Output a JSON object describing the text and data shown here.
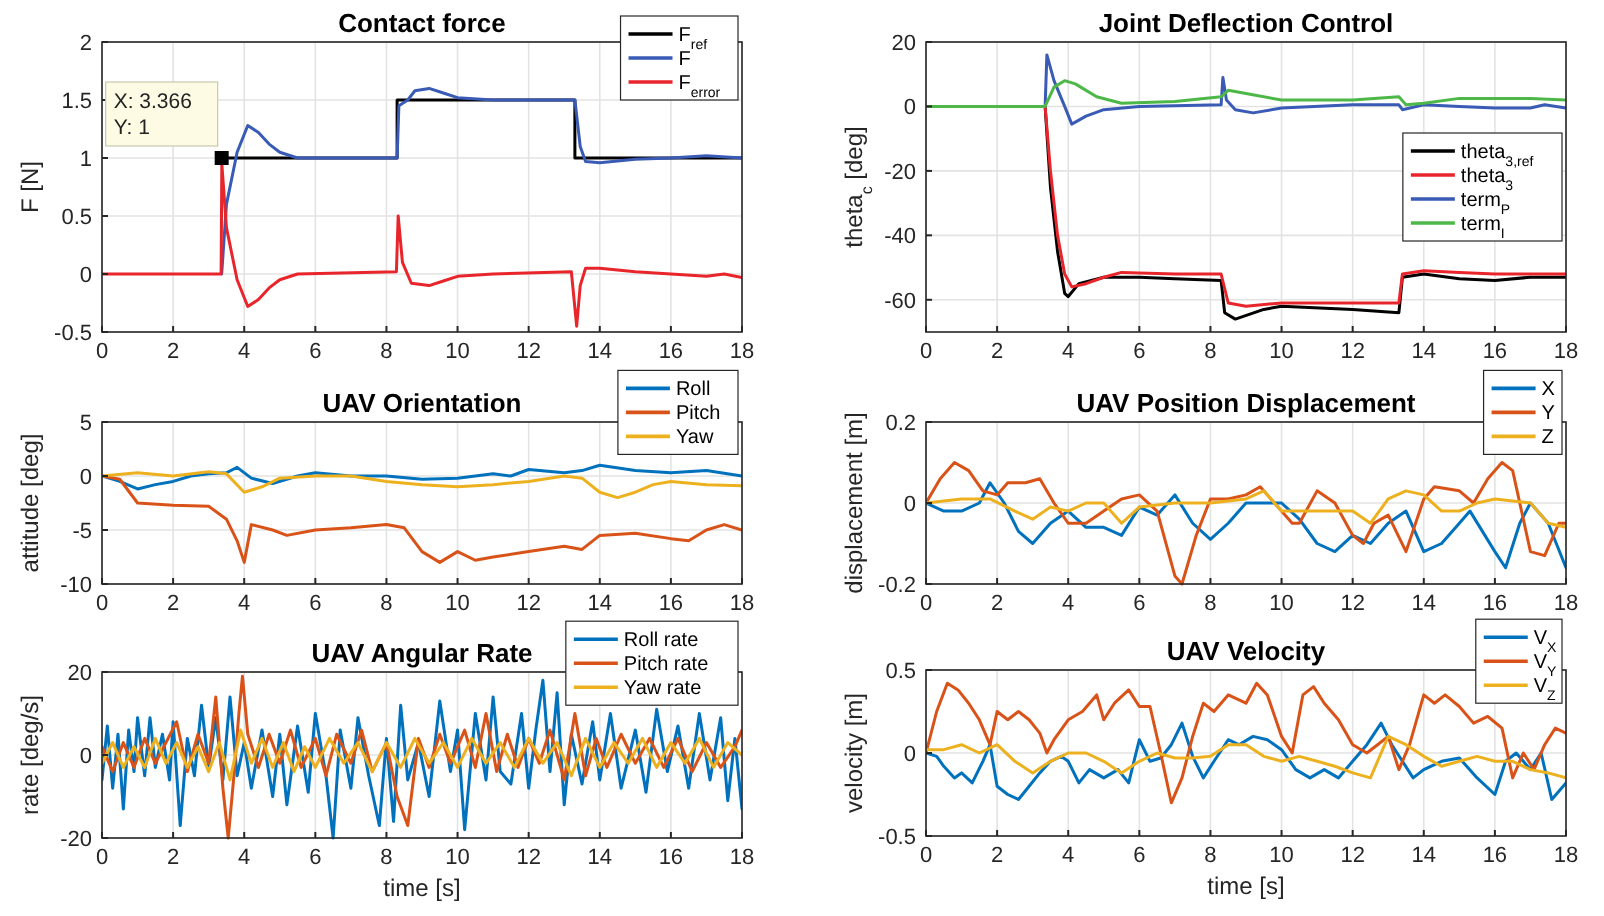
{
  "chart_data": [
    {
      "type": "line",
      "title": "Contact force",
      "ylabel": "F [N]",
      "xlim": [
        0,
        18
      ],
      "ylim": [
        -0.5,
        2
      ],
      "xticks": [
        0,
        2,
        4,
        6,
        8,
        10,
        12,
        14,
        16,
        18
      ],
      "yticks": [
        -0.5,
        0,
        0.5,
        1,
        1.5,
        2
      ],
      "grid": true,
      "legend": "top right",
      "annotations": [
        {
          "text": "X: 3.366\nY: 1",
          "x": 3.366,
          "y": 1
        }
      ],
      "series": [
        {
          "name": "F$_{ref}$",
          "color": "#000000",
          "x": [
            3.366,
            8.3,
            8.3,
            13.3,
            13.3,
            18
          ],
          "values": [
            1,
            1,
            1.5,
            1.5,
            1,
            1
          ]
        },
        {
          "name": "F",
          "color": "#3a5bb5",
          "x": [
            3.366,
            3.5,
            3.8,
            4.1,
            4.4,
            4.7,
            5,
            5.5,
            8.3,
            8.35,
            8.6,
            8.8,
            9.2,
            9.6,
            10,
            11,
            13.3,
            13.45,
            13.6,
            14,
            15,
            16,
            17,
            18
          ],
          "values": [
            0,
            0.6,
            1.05,
            1.28,
            1.22,
            1.12,
            1.05,
            1,
            1,
            1.45,
            1.5,
            1.58,
            1.6,
            1.56,
            1.52,
            1.5,
            1.5,
            1.1,
            0.97,
            0.96,
            0.99,
            1,
            1.02,
            1
          ]
        },
        {
          "name": "F$_{error}$",
          "color": "#e8252b",
          "x": [
            0,
            3.35,
            3.37,
            3.5,
            3.8,
            4.1,
            4.4,
            4.7,
            5,
            5.5,
            8.28,
            8.33,
            8.45,
            8.7,
            9.2,
            9.6,
            10,
            11,
            13.2,
            13.35,
            13.45,
            13.6,
            14,
            15,
            16,
            17,
            17.5,
            18
          ],
          "values": [
            0,
            0,
            0.95,
            0.4,
            -0.05,
            -0.28,
            -0.22,
            -0.12,
            -0.05,
            0,
            0.02,
            0.5,
            0.1,
            -0.08,
            -0.1,
            -0.06,
            -0.02,
            0,
            0.02,
            -0.45,
            -0.1,
            0.05,
            0.05,
            0.02,
            0,
            -0.02,
            0,
            -0.03
          ]
        }
      ]
    },
    {
      "type": "line",
      "title": "Joint Deflection Control",
      "ylabel": "theta$_{c}$ [deg]",
      "xlim": [
        0,
        18
      ],
      "ylim": [
        -70,
        20
      ],
      "xticks": [
        0,
        2,
        4,
        6,
        8,
        10,
        12,
        14,
        16,
        18
      ],
      "yticks": [
        -60,
        -40,
        -20,
        0,
        20
      ],
      "grid": true,
      "legend": "right",
      "series": [
        {
          "name": "theta$_{3,ref}$",
          "color": "#000000",
          "x": [
            3.35,
            3.5,
            3.7,
            3.9,
            4,
            4.3,
            5,
            6,
            7,
            8.3,
            8.4,
            8.7,
            9.5,
            10,
            12,
            13.3,
            13.4,
            14,
            15,
            16,
            17,
            18
          ],
          "values": [
            0,
            -25,
            -45,
            -58,
            -59,
            -55,
            -53,
            -53,
            -53.5,
            -54,
            -64,
            -66,
            -63,
            -62,
            -63,
            -64,
            -53,
            -52,
            -53.5,
            -54,
            -53,
            -53
          ]
        },
        {
          "name": "theta$_{3}$",
          "color": "#e8252b",
          "x": [
            3.35,
            3.5,
            3.7,
            3.9,
            4.1,
            4.5,
            5,
            5.5,
            7,
            8.3,
            8.5,
            9,
            10,
            12,
            13.3,
            13.4,
            14,
            15,
            16,
            18
          ],
          "values": [
            0,
            -20,
            -40,
            -52,
            -56,
            -55,
            -53,
            -51.5,
            -52,
            -52,
            -61,
            -62,
            -61,
            -61,
            -61,
            -52,
            -51,
            -51.5,
            -52,
            -52
          ]
        },
        {
          "name": "term$_{P}$",
          "color": "#3a5bb5",
          "x": [
            0,
            3.35,
            3.4,
            3.6,
            3.9,
            4.1,
            4.5,
            5,
            6,
            8.3,
            8.35,
            8.45,
            8.7,
            9.2,
            10,
            12,
            13.3,
            13.4,
            14,
            15,
            16,
            17,
            17.4,
            18
          ],
          "values": [
            0,
            0,
            16,
            8,
            0,
            -5.5,
            -3,
            -1,
            0,
            0.5,
            9,
            2,
            -1,
            -2,
            -0.5,
            0.5,
            0.5,
            -1,
            0.5,
            0,
            -0.5,
            -0.5,
            0.5,
            -0.5
          ]
        },
        {
          "name": "term$_{I}$",
          "color": "#4db848",
          "x": [
            0,
            3.35,
            3.6,
            3.9,
            4.2,
            4.8,
            5.5,
            7,
            8.3,
            8.5,
            9,
            10,
            12,
            13.3,
            13.5,
            14,
            15,
            16,
            17,
            18
          ],
          "values": [
            0,
            0,
            6,
            8,
            7,
            3,
            1,
            1.5,
            3,
            5,
            4,
            2,
            2,
            3,
            0.5,
            1,
            2.5,
            2.5,
            2.5,
            2
          ]
        }
      ]
    },
    {
      "type": "line",
      "title": "UAV Orientation",
      "ylabel": "attitude [deg]",
      "xlim": [
        0,
        18
      ],
      "ylim": [
        -10,
        5
      ],
      "xticks": [
        0,
        2,
        4,
        6,
        8,
        10,
        12,
        14,
        16,
        18
      ],
      "yticks": [
        -10,
        -5,
        0,
        5
      ],
      "grid": true,
      "legend": "top right",
      "series": [
        {
          "name": "Roll",
          "color": "#0072bd",
          "x": [
            0,
            0.5,
            1,
            1.5,
            2,
            2.5,
            3,
            3.5,
            3.8,
            4.2,
            4.8,
            5.5,
            6,
            7,
            8,
            9,
            10,
            11,
            11.5,
            12,
            13,
            13.5,
            14,
            15,
            16,
            17,
            18
          ],
          "values": [
            0,
            -0.5,
            -1.2,
            -0.8,
            -0.5,
            0,
            0.2,
            0.3,
            0.8,
            -0.2,
            -0.7,
            0,
            0.3,
            0,
            0,
            -0.3,
            -0.2,
            0.2,
            0,
            0.6,
            0.3,
            0.5,
            1,
            0.5,
            0.3,
            0.5,
            0
          ]
        },
        {
          "name": "Pitch",
          "color": "#d95319",
          "x": [
            0,
            0.5,
            1,
            2,
            3,
            3.5,
            3.8,
            4,
            4.2,
            4.8,
            5.2,
            6,
            7,
            8,
            8.5,
            9,
            9.5,
            10,
            10.5,
            11,
            12,
            13,
            13.5,
            14,
            15,
            16,
            16.5,
            17,
            17.5,
            18
          ],
          "values": [
            0,
            -0.3,
            -2.5,
            -2.7,
            -2.8,
            -4,
            -6,
            -8,
            -4.5,
            -5,
            -5.5,
            -5,
            -4.8,
            -4.5,
            -4.8,
            -7,
            -8,
            -7,
            -7.8,
            -7.5,
            -7,
            -6.5,
            -6.8,
            -5.5,
            -5.3,
            -5.8,
            -6,
            -5,
            -4.5,
            -5
          ]
        },
        {
          "name": "Yaw",
          "color": "#edb120",
          "x": [
            0,
            1,
            2,
            3,
            3.5,
            4,
            4.5,
            5,
            6,
            7,
            8,
            9,
            10,
            11,
            12,
            13,
            13.5,
            14,
            14.5,
            15,
            15.5,
            16,
            17,
            18
          ],
          "values": [
            0,
            0.3,
            0,
            0.4,
            0.2,
            -1.5,
            -1,
            -0.2,
            0,
            0,
            -0.5,
            -0.8,
            -1,
            -0.8,
            -0.5,
            0,
            -0.2,
            -1.5,
            -2,
            -1.5,
            -0.8,
            -0.5,
            -0.8,
            -0.9
          ]
        }
      ]
    },
    {
      "type": "line",
      "title": "UAV Position Displacement",
      "ylabel": "displacement [m]",
      "xlim": [
        0,
        18
      ],
      "ylim": [
        -0.2,
        0.2
      ],
      "xticks": [
        0,
        2,
        4,
        6,
        8,
        10,
        12,
        14,
        16,
        18
      ],
      "yticks": [
        -0.2,
        0,
        0.2
      ],
      "grid": true,
      "legend": "top right",
      "series": [
        {
          "name": "X",
          "color": "#0072bd",
          "x": [
            0,
            0.5,
            1,
            1.5,
            1.8,
            2.2,
            2.6,
            3,
            3.5,
            4,
            4.5,
            5,
            5.5,
            6,
            6.5,
            7,
            7.5,
            8,
            8.5,
            9,
            10,
            10.5,
            11,
            11.5,
            12,
            12.5,
            13,
            13.5,
            14,
            14.5,
            15,
            15.3,
            16,
            16.3,
            16.7,
            17,
            17.5,
            18
          ],
          "values": [
            0,
            -0.02,
            -0.02,
            0,
            0.05,
            0,
            -0.07,
            -0.1,
            -0.05,
            -0.02,
            -0.06,
            -0.06,
            -0.08,
            -0.01,
            -0.03,
            0.02,
            -0.05,
            -0.09,
            -0.05,
            0,
            0,
            -0.04,
            -0.1,
            -0.12,
            -0.08,
            -0.1,
            -0.05,
            -0.02,
            -0.12,
            -0.1,
            -0.05,
            -0.02,
            -0.12,
            -0.16,
            -0.05,
            0,
            -0.05,
            -0.16
          ]
        },
        {
          "name": "Y",
          "color": "#d95319",
          "x": [
            0,
            0.4,
            0.8,
            1.2,
            1.6,
            2,
            2.3,
            2.8,
            3.2,
            3.6,
            4,
            4.5,
            5,
            5.5,
            6,
            6.5,
            7,
            7.2,
            7.6,
            8,
            8.5,
            9,
            9.4,
            9.8,
            10.3,
            10.5,
            11,
            11.5,
            12,
            12.3,
            12.6,
            13,
            13.5,
            14,
            14.3,
            15,
            15.4,
            15.8,
            16.2,
            16.5,
            17,
            17.4,
            17.8,
            18
          ],
          "values": [
            0,
            0.06,
            0.1,
            0.08,
            0.03,
            0.02,
            0.05,
            0.05,
            0.06,
            0,
            -0.05,
            -0.05,
            -0.02,
            0.01,
            0.02,
            -0.02,
            -0.18,
            -0.2,
            -0.08,
            0.01,
            0.01,
            0.02,
            0.04,
            0,
            -0.05,
            -0.05,
            0.03,
            0,
            -0.08,
            -0.1,
            -0.05,
            -0.03,
            -0.12,
            0.01,
            0.04,
            0.03,
            0,
            0.06,
            0.1,
            0.08,
            -0.12,
            -0.13,
            -0.05,
            -0.05
          ]
        },
        {
          "name": "Z",
          "color": "#edb120",
          "x": [
            0,
            1,
            1.8,
            2.5,
            3,
            3.5,
            4,
            4.5,
            5,
            5.5,
            6,
            7,
            8,
            9,
            9.5,
            10,
            11,
            12,
            12.5,
            13,
            13.5,
            14,
            14.5,
            15,
            15.5,
            16,
            17,
            17.5,
            18
          ],
          "values": [
            0,
            0.01,
            0.01,
            -0.02,
            -0.04,
            -0.01,
            -0.02,
            0,
            0,
            -0.05,
            -0.01,
            0,
            0,
            0.01,
            0.03,
            -0.02,
            -0.02,
            -0.02,
            -0.05,
            0.01,
            0.03,
            0.02,
            -0.02,
            -0.02,
            0,
            0.01,
            0,
            -0.05,
            -0.06
          ]
        }
      ]
    },
    {
      "type": "line",
      "title": "UAV Angular Rate",
      "xlabel": "time [s]",
      "ylabel": "rate [deg/s]",
      "xlim": [
        0,
        18
      ],
      "ylim": [
        -20,
        20
      ],
      "xticks": [
        0,
        2,
        4,
        6,
        8,
        10,
        12,
        14,
        16,
        18
      ],
      "yticks": [
        -20,
        0,
        20
      ],
      "grid": true,
      "legend": "top right",
      "series": [
        {
          "name": "Roll rate",
          "color": "#0072bd",
          "x": [
            0,
            0.15,
            0.3,
            0.45,
            0.6,
            0.75,
            0.9,
            1,
            1.2,
            1.35,
            1.5,
            1.7,
            1.9,
            2,
            2.2,
            2.4,
            2.6,
            2.8,
            3,
            3.2,
            3.4,
            3.6,
            3.8,
            4,
            4.2,
            4.5,
            4.8,
            5,
            5.2,
            5.5,
            5.8,
            6,
            6.3,
            6.5,
            6.7,
            7,
            7.2,
            7.5,
            7.8,
            8,
            8.2,
            8.4,
            8.6,
            8.9,
            9.2,
            9.5,
            9.8,
            10,
            10.2,
            10.5,
            10.8,
            11,
            11.2,
            11.5,
            11.8,
            12,
            12.2,
            12.4,
            12.6,
            12.8,
            13,
            13.2,
            13.5,
            13.8,
            14,
            14.3,
            14.6,
            15,
            15.3,
            15.6,
            15.9,
            16.2,
            16.5,
            16.8,
            17.1,
            17.4,
            17.6,
            17.8,
            18
          ],
          "values": [
            -6,
            7,
            -8,
            5,
            -13,
            6,
            -4,
            9,
            -5,
            9,
            -3,
            5,
            -6,
            8,
            -17,
            4,
            -5,
            12,
            -3,
            9,
            -6,
            14,
            -5,
            3,
            -8,
            6,
            -10,
            5,
            -12,
            7,
            -9,
            10,
            -5,
            -20,
            6,
            -8,
            9,
            -5,
            -17,
            4,
            -16,
            12,
            -6,
            3,
            -10,
            13,
            -4,
            6,
            -18,
            10,
            -6,
            14,
            -4,
            -7,
            10,
            -8,
            6,
            18,
            -4,
            15,
            -12,
            5,
            -7,
            8,
            -6,
            10,
            -8,
            6,
            -9,
            11,
            -4,
            7,
            -8,
            10,
            -6,
            9,
            -11,
            4,
            -13
          ]
        },
        {
          "name": "Pitch rate",
          "color": "#d95319",
          "x": [
            0,
            0.3,
            0.6,
            0.9,
            1.2,
            1.5,
            1.8,
            2.1,
            2.4,
            2.7,
            3,
            3.2,
            3.4,
            3.55,
            3.7,
            3.85,
            3.95,
            4.1,
            4.4,
            4.7,
            5,
            5.3,
            5.6,
            6,
            6.3,
            6.6,
            7,
            7.3,
            7.6,
            8,
            8.3,
            8.6,
            8.9,
            9.2,
            9.5,
            9.8,
            10.2,
            10.5,
            10.8,
            11.1,
            11.4,
            11.7,
            12,
            12.3,
            12.6,
            13,
            13.3,
            13.6,
            13.9,
            14.2,
            14.6,
            15,
            15.4,
            15.8,
            16.2,
            16.6,
            17,
            17.4,
            17.8,
            18
          ],
          "values": [
            2,
            -4,
            3,
            -3,
            4,
            -2,
            3,
            8,
            -4,
            5,
            -2,
            14,
            -8,
            -20,
            -6,
            10,
            19,
            5,
            -3,
            5,
            -2,
            6,
            -3,
            4,
            -5,
            5,
            -2,
            6,
            -4,
            3,
            -10,
            -17,
            4,
            -3,
            5,
            -2,
            6,
            -3,
            10,
            -4,
            5,
            -3,
            4,
            -2,
            6,
            -6,
            10,
            -5,
            4,
            -3,
            5,
            -2,
            4,
            -3,
            4,
            -4,
            3,
            -3,
            2,
            6
          ]
        },
        {
          "name": "Yaw rate",
          "color": "#edb120",
          "x": [
            0,
            0.3,
            0.6,
            0.9,
            1.2,
            1.5,
            1.8,
            2.1,
            2.4,
            2.7,
            3,
            3.3,
            3.6,
            3.9,
            4.2,
            4.5,
            4.8,
            5.1,
            5.4,
            5.7,
            6,
            6.4,
            6.8,
            7.2,
            7.6,
            8,
            8.4,
            8.8,
            9.2,
            9.6,
            10,
            10.4,
            10.8,
            11.2,
            11.6,
            12,
            12.4,
            12.8,
            13.2,
            13.6,
            14,
            14.4,
            14.8,
            15.2,
            15.6,
            16,
            16.4,
            16.8,
            17.2,
            17.6,
            18
          ],
          "values": [
            -2,
            3,
            -3,
            2,
            -3,
            4,
            -2,
            3,
            -3,
            2,
            -4,
            3,
            -6,
            6,
            -2,
            4,
            -3,
            3,
            -4,
            2,
            -3,
            4,
            -2,
            3,
            -4,
            3,
            -3,
            4,
            -2,
            3,
            -3,
            4,
            -2,
            3,
            -3,
            4,
            -2,
            3,
            -5,
            4,
            -3,
            3,
            -2,
            4,
            -3,
            3,
            -2,
            4,
            -3,
            3,
            0
          ]
        }
      ]
    },
    {
      "type": "line",
      "title": "UAV Velocity",
      "xlabel": "time [s]",
      "ylabel": "velocity [m]",
      "xlim": [
        0,
        18
      ],
      "ylim": [
        -0.5,
        0.5
      ],
      "xticks": [
        0,
        2,
        4,
        6,
        8,
        10,
        12,
        14,
        16,
        18
      ],
      "yticks": [
        -0.5,
        0,
        0.5
      ],
      "grid": true,
      "legend": "top right",
      "series": [
        {
          "name": "V$_{X}$",
          "color": "#0072bd",
          "x": [
            0,
            0.3,
            0.5,
            0.8,
            1,
            1.3,
            1.6,
            1.8,
            2,
            2.3,
            2.6,
            2.9,
            3.2,
            3.5,
            3.8,
            4,
            4.3,
            4.6,
            5,
            5.4,
            5.7,
            6,
            6.3,
            6.6,
            6.9,
            7.2,
            7.5,
            7.8,
            8.1,
            8.5,
            8.8,
            9.2,
            9.6,
            10,
            10.4,
            10.8,
            11.2,
            11.6,
            12,
            12.4,
            12.8,
            13.1,
            13.4,
            13.7,
            14,
            14.5,
            15,
            15.5,
            16,
            16.3,
            16.6,
            17,
            17.3,
            17.6,
            18
          ],
          "values": [
            0,
            -0.02,
            -0.08,
            -0.15,
            -0.12,
            -0.18,
            -0.05,
            0.05,
            -0.2,
            -0.25,
            -0.28,
            -0.2,
            -0.12,
            -0.05,
            -0.02,
            -0.05,
            -0.18,
            -0.1,
            -0.15,
            -0.1,
            -0.18,
            0.08,
            -0.05,
            -0.03,
            0.05,
            0.18,
            -0.02,
            -0.15,
            -0.05,
            0.08,
            0.05,
            0.1,
            0.08,
            0.02,
            -0.1,
            -0.15,
            -0.1,
            -0.15,
            -0.05,
            0.05,
            0.18,
            0.05,
            -0.05,
            -0.15,
            -0.1,
            -0.05,
            -0.03,
            -0.15,
            -0.25,
            -0.05,
            0,
            -0.1,
            0,
            -0.28,
            -0.18
          ]
        },
        {
          "name": "V$_{Y}$",
          "color": "#d95319",
          "x": [
            0,
            0.3,
            0.6,
            0.9,
            1.2,
            1.5,
            1.8,
            2,
            2.3,
            2.6,
            2.9,
            3.2,
            3.4,
            3.6,
            4,
            4.4,
            4.8,
            5,
            5.3,
            5.7,
            6,
            6.3,
            6.6,
            6.9,
            7.2,
            7.5,
            7.8,
            8.1,
            8.5,
            9,
            9.3,
            9.6,
            10,
            10.3,
            10.6,
            10.9,
            11.2,
            11.6,
            12,
            12.4,
            12.7,
            13,
            13.3,
            13.6,
            14,
            14.3,
            14.6,
            15,
            15.4,
            15.8,
            16.2,
            16.5,
            16.8,
            17.1,
            17.4,
            17.7,
            18
          ],
          "values": [
            0,
            0.25,
            0.42,
            0.38,
            0.3,
            0.2,
            0.05,
            0.25,
            0.2,
            0.25,
            0.2,
            0.12,
            0,
            0.08,
            0.2,
            0.25,
            0.35,
            0.2,
            0.3,
            0.38,
            0.28,
            0.28,
            0,
            -0.3,
            -0.15,
            0.1,
            0.3,
            0.25,
            0.35,
            0.3,
            0.42,
            0.35,
            0.1,
            0,
            0.35,
            0.4,
            0.3,
            0.2,
            0.05,
            0,
            0.05,
            0.1,
            -0.1,
            0.05,
            0.35,
            0.3,
            0.35,
            0.28,
            0.18,
            0.22,
            0.15,
            -0.15,
            0,
            -0.1,
            0.05,
            0.15,
            0.12
          ]
        },
        {
          "name": "V$_{Z}$",
          "color": "#edb120",
          "x": [
            0,
            0.5,
            1,
            1.5,
            2,
            2.5,
            3,
            3.5,
            4,
            4.5,
            5,
            5.5,
            6,
            6.5,
            7,
            7.5,
            8,
            8.5,
            9,
            9.5,
            10,
            10.5,
            11,
            11.5,
            12,
            12.5,
            13,
            13.5,
            14,
            14.5,
            15,
            15.5,
            16,
            16.5,
            17,
            17.5,
            18
          ],
          "values": [
            0.02,
            0.02,
            0.05,
            0,
            0.05,
            -0.05,
            -0.12,
            -0.05,
            0,
            0,
            -0.05,
            -0.12,
            -0.05,
            0,
            -0.03,
            -0.03,
            -0.02,
            0.05,
            0.05,
            -0.02,
            -0.05,
            -0.02,
            -0.05,
            -0.08,
            -0.12,
            -0.15,
            0.1,
            0.05,
            -0.02,
            -0.08,
            -0.05,
            -0.02,
            -0.05,
            -0.05,
            -0.1,
            -0.12,
            -0.15
          ]
        }
      ]
    }
  ]
}
